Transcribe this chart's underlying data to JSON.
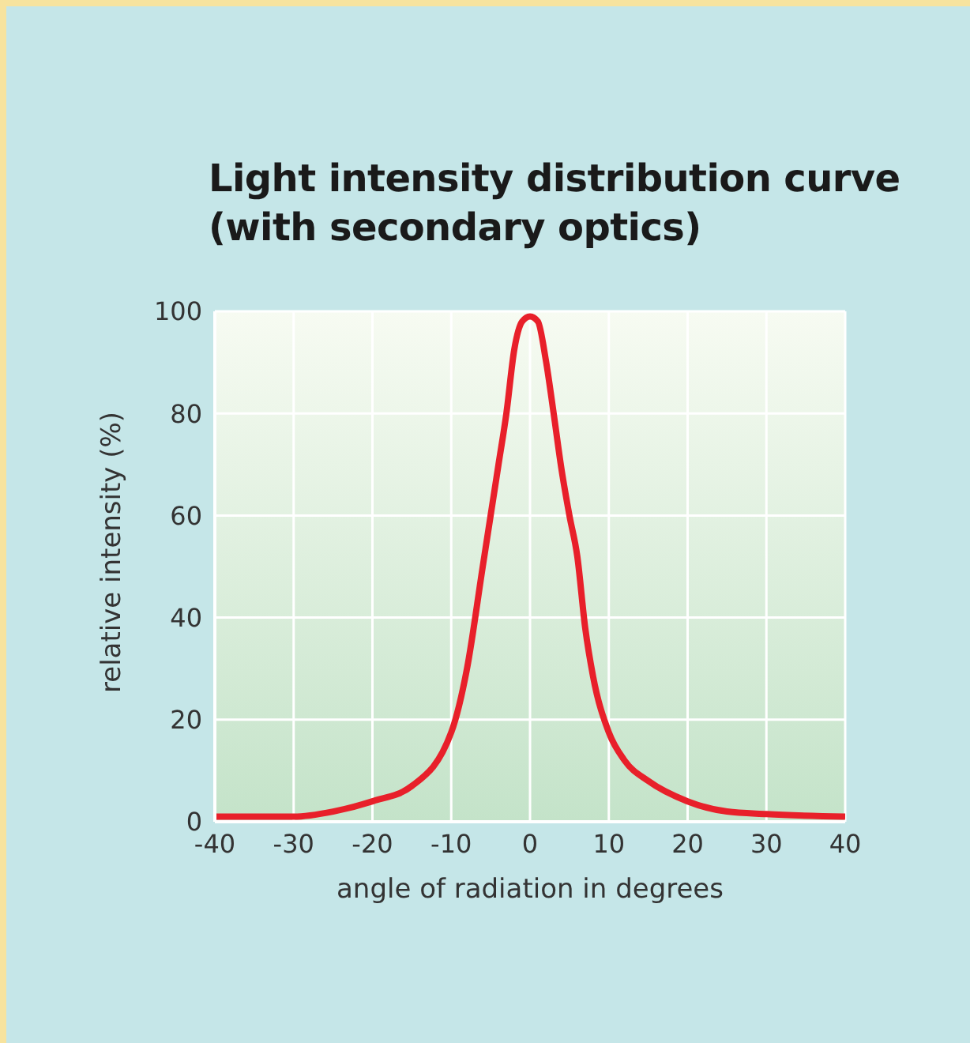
{
  "chart_data": {
    "type": "line",
    "title": "Light intensity distribution curve\n(with secondary optics)",
    "xlabel": "angle of radiation in degrees",
    "ylabel": "relative intensity (%)",
    "x": [
      -40,
      -30,
      -25,
      -20,
      -15,
      -10,
      -8,
      -6,
      -5,
      -4,
      -3,
      -2,
      -1,
      0,
      1,
      2,
      3,
      4,
      5,
      6,
      7,
      8,
      10,
      12,
      15,
      20,
      25,
      30,
      40
    ],
    "series": [
      {
        "color": "#e8202a",
        "values": [
          1,
          1,
          2,
          4,
          7,
          17.5,
          30,
          50,
          60,
          70,
          80,
          92.5,
          98,
          99,
          98,
          90.5,
          80,
          69,
          60,
          52,
          38,
          28.5,
          17.5,
          12,
          8,
          4,
          2,
          1.5,
          1
        ]
      }
    ],
    "xlim": [
      -40,
      40
    ],
    "ylim": [
      0,
      100
    ],
    "xticks": [
      -40,
      -30,
      -20,
      -10,
      0,
      10,
      20,
      30,
      40
    ],
    "yticks": [
      0,
      20,
      40,
      60,
      80,
      100
    ],
    "grid": true
  }
}
